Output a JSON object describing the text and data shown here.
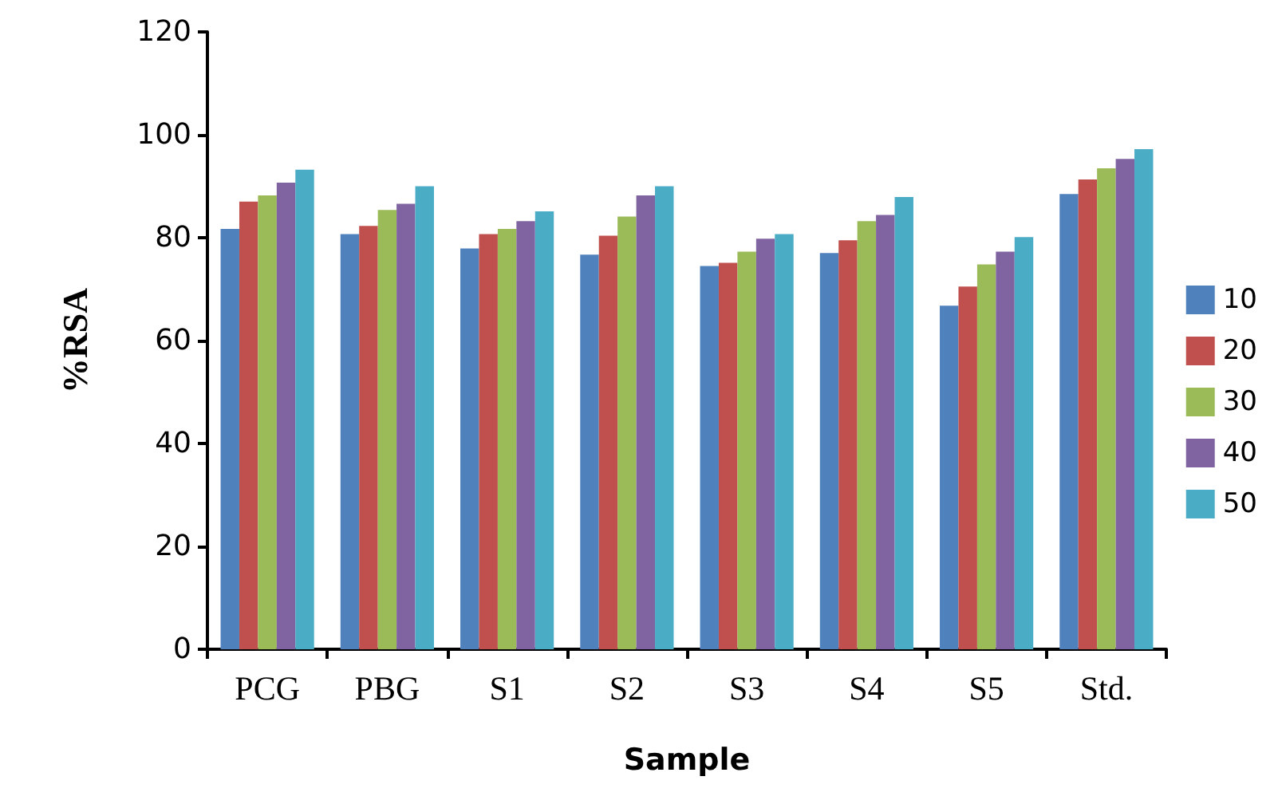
{
  "chart_data": {
    "type": "bar",
    "xlabel": "Sample",
    "ylabel": "%RSA",
    "categories": [
      "PCG",
      "PBG",
      "S1",
      "S2",
      "S3",
      "S4",
      "S5",
      "Std."
    ],
    "series": [
      {
        "name": "10",
        "color": "#4f81bd",
        "values": [
          81.7,
          80.7,
          77.9,
          76.7,
          74.5,
          77.0,
          66.8,
          88.5
        ]
      },
      {
        "name": "20",
        "color": "#c0504d",
        "values": [
          87.0,
          82.3,
          80.7,
          80.4,
          75.1,
          79.5,
          70.5,
          91.3
        ]
      },
      {
        "name": "30",
        "color": "#9bbb59",
        "values": [
          88.2,
          85.4,
          81.7,
          84.1,
          77.3,
          83.2,
          74.8,
          93.5
        ]
      },
      {
        "name": "40",
        "color": "#8064a2",
        "values": [
          90.7,
          86.6,
          83.2,
          88.2,
          79.8,
          84.4,
          77.3,
          95.3
        ]
      },
      {
        "name": "50",
        "color": "#4bacc6",
        "values": [
          93.2,
          90.0,
          85.1,
          90.0,
          80.7,
          87.9,
          80.1,
          97.2
        ]
      }
    ],
    "ylim": [
      0,
      120
    ],
    "yticks": [
      0,
      20,
      40,
      60,
      80,
      100,
      120
    ],
    "grid": false,
    "legend": "right"
  }
}
